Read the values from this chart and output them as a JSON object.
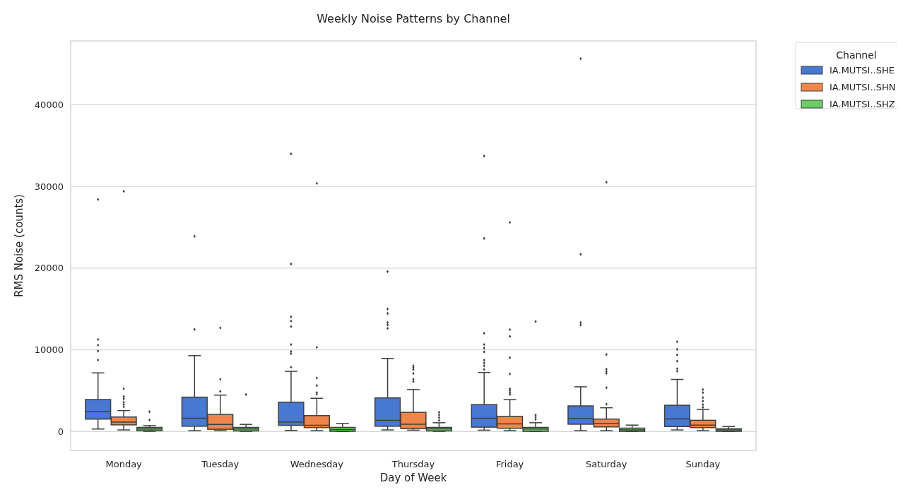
{
  "chart_data": {
    "type": "box",
    "title": "Weekly Noise Patterns by Channel",
    "xlabel": "Day of Week",
    "ylabel": "RMS Noise (counts)",
    "legend_title": "Channel",
    "categories": [
      "Monday",
      "Tuesday",
      "Wednesday",
      "Thursday",
      "Friday",
      "Saturday",
      "Sunday"
    ],
    "ylim": [
      -2300,
      47800
    ],
    "yticks": [
      0,
      10000,
      20000,
      30000,
      40000
    ],
    "grid": "y",
    "legend": "top right",
    "series": [
      {
        "name": "IA.MUTSI..SHE",
        "color": "#4878d0",
        "boxes": [
          {
            "low": 310,
            "q1": 1525,
            "median": 2430,
            "q3": 3920,
            "high": 7180,
            "outliers": [
              8750,
              9860,
              10570,
              11270,
              28400
            ]
          },
          {
            "low": 110,
            "q1": 650,
            "median": 1640,
            "q3": 4210,
            "high": 9290,
            "outliers": [
              12520,
              23900
            ]
          },
          {
            "low": 140,
            "q1": 760,
            "median": 1160,
            "q3": 3590,
            "high": 7370,
            "outliers": [
              7880,
              9520,
              9800,
              10650,
              12850,
              13530,
              14040,
              20500,
              33980
            ]
          },
          {
            "low": 200,
            "q1": 650,
            "median": 1380,
            "q3": 4120,
            "high": 8950,
            "outliers": [
              12630,
              13050,
              13330,
              14460,
              15000,
              19580
            ]
          },
          {
            "low": 170,
            "q1": 540,
            "median": 1640,
            "q3": 3300,
            "high": 7230,
            "outliers": [
              7600,
              8050,
              8390,
              8750,
              9750,
              10230,
              10650,
              12030,
              23640,
              33730
            ]
          },
          {
            "low": 110,
            "q1": 900,
            "median": 1580,
            "q3": 3140,
            "high": 5480,
            "outliers": [
              13050,
              13330,
              21690,
              45630
            ]
          },
          {
            "low": 200,
            "q1": 620,
            "median": 1550,
            "q3": 3220,
            "high": 6380,
            "outliers": [
              7400,
              7690,
              8620,
              9380,
              10080,
              10990
            ]
          }
        ]
      },
      {
        "name": "IA.MUTSI..SHN",
        "color": "#ee854a",
        "boxes": [
          {
            "low": 200,
            "q1": 820,
            "median": 1160,
            "q3": 1780,
            "high": 2570,
            "outliers": [
              3020,
              3300,
              3590,
              4010,
              4290,
              5230,
              29400
            ]
          },
          {
            "low": 110,
            "q1": 280,
            "median": 880,
            "q3": 2090,
            "high": 4460,
            "outliers": [
              4910,
              6410,
              12690
            ]
          },
          {
            "low": 110,
            "q1": 480,
            "median": 760,
            "q3": 1950,
            "high": 4070,
            "outliers": [
              4580,
              4770,
              5620,
              6550,
              10310,
              30370
            ]
          },
          {
            "low": 170,
            "q1": 370,
            "median": 900,
            "q3": 2350,
            "high": 5140,
            "outliers": [
              6130,
              6410,
              7120,
              7600,
              7820,
              8050
            ]
          },
          {
            "low": 110,
            "q1": 400,
            "median": 930,
            "q3": 1860,
            "high": 3900,
            "outliers": [
              4550,
              4770,
              5000,
              5230,
              7060,
              9040,
              11640,
              12480,
              25590
            ]
          },
          {
            "low": 110,
            "q1": 570,
            "median": 960,
            "q3": 1530,
            "high": 2910,
            "outliers": [
              3360,
              5370,
              7120,
              7350,
              7630,
              9430,
              30510
            ]
          },
          {
            "low": 110,
            "q1": 480,
            "median": 790,
            "q3": 1380,
            "high": 2710,
            "outliers": [
              2970,
              3300,
              3730,
              4150,
              4770,
              5140
            ]
          }
        ]
      },
      {
        "name": "IA.MUTSI..SHZ",
        "color": "#6acc64",
        "boxes": [
          {
            "low": 30,
            "q1": 110,
            "median": 310,
            "q3": 510,
            "high": 730,
            "outliers": [
              1410,
              2430
            ]
          },
          {
            "low": 30,
            "q1": 80,
            "median": 310,
            "q3": 510,
            "high": 880,
            "outliers": [
              4520
            ]
          },
          {
            "low": 10,
            "q1": 30,
            "median": 250,
            "q3": 510,
            "high": 990
          },
          {
            "low": 30,
            "q1": 80,
            "median": 340,
            "q3": 510,
            "high": 1080,
            "outliers": [
              1380,
              1720,
              2030,
              2370
            ]
          },
          {
            "low": 10,
            "q1": 30,
            "median": 310,
            "q3": 510,
            "high": 1080,
            "outliers": [
              1470,
              1750,
              2030,
              13470
            ]
          },
          {
            "low": 10,
            "q1": 30,
            "median": 200,
            "q3": 420,
            "high": 790
          },
          {
            "low": 10,
            "q1": 30,
            "median": 200,
            "q3": 340,
            "high": 620
          }
        ]
      }
    ]
  }
}
